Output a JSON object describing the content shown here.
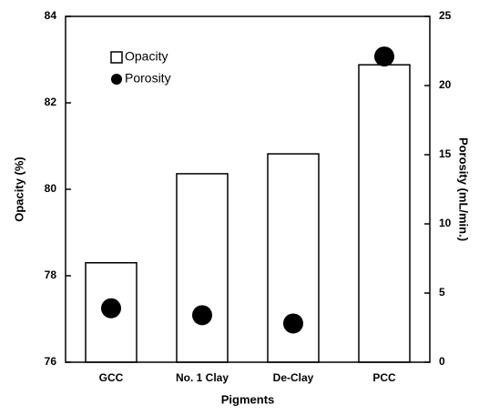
{
  "chart_data": {
    "type": "bar",
    "categories": [
      "GCC",
      "No. 1 Clay",
      "De-Clay",
      "PCC"
    ],
    "x_label": "Pigments",
    "y_label": "Opacity (%)",
    "y2_label": "Porosity (mL/min.)",
    "ylim": [
      76,
      84
    ],
    "yticks": [
      76,
      78,
      80,
      82,
      84
    ],
    "y2lim": [
      0,
      25
    ],
    "y2ticks": [
      0,
      5,
      10,
      15,
      20,
      25
    ],
    "grid": false,
    "legend": "upper left",
    "series": [
      {
        "name": "Opacity",
        "type": "bar",
        "color": "#ffffff",
        "values": [
          78.3,
          80.36,
          80.82,
          82.88
        ]
      },
      {
        "name": "Porosity",
        "type": "scatter",
        "axis": "y2",
        "color": "#000000",
        "values": [
          3.9,
          3.4,
          2.8,
          22.1
        ]
      }
    ]
  }
}
